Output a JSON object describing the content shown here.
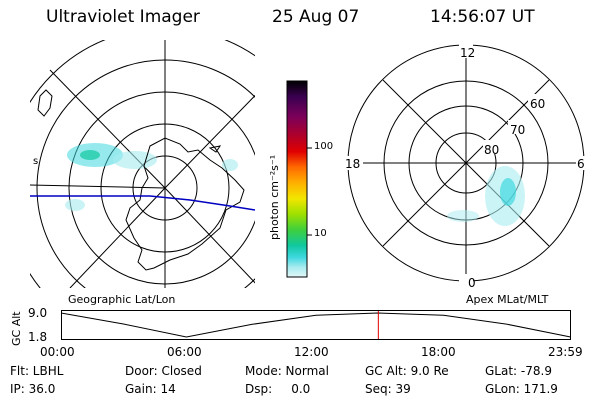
{
  "header": {
    "instrument": "Ultraviolet Imager",
    "date": "25 Aug 07",
    "time": "14:56:07 UT"
  },
  "left_panel": {
    "caption": "Geographic Lat/Lon",
    "edge_label": "s"
  },
  "colorbar": {
    "unit_label": "photon cm⁻²s⁻¹",
    "ticks": [
      "100",
      "10"
    ],
    "colors": [
      "#000000",
      "#3a0050",
      "#7a005a",
      "#b0002a",
      "#e00000",
      "#ff6a00",
      "#ffb000",
      "#f2e600",
      "#9de000",
      "#3ecf3e",
      "#10c8a0",
      "#3fd8e0",
      "#a8ecf0",
      "#e4f6f8"
    ]
  },
  "right_panel": {
    "caption": "Apex MLat/MLT",
    "mlt_labels": {
      "top": "12",
      "left": "18",
      "right": "6",
      "bottom": "0"
    },
    "lat_labels": [
      "60",
      "70",
      "80"
    ]
  },
  "altitude_plot": {
    "ylabel": "GC Alt",
    "yticks": [
      "9.0",
      "1.8"
    ],
    "xticks": [
      "00:00",
      "06:00",
      "12:00",
      "18:00",
      "23:59"
    ],
    "line_color": "#000000",
    "marker_color": "#e00000"
  },
  "chart_data": {
    "type": "line",
    "xlabel": "",
    "ylabel": "GC Alt",
    "x_range": [
      "00:00",
      "23:59"
    ],
    "ylim": [
      1.8,
      9.0
    ],
    "points": [
      {
        "t": 0.0,
        "alt": 9.0
      },
      {
        "t": 3.0,
        "alt": 5.6
      },
      {
        "t": 5.9,
        "alt": 1.8
      },
      {
        "t": 9.0,
        "alt": 5.6
      },
      {
        "t": 12.0,
        "alt": 8.3
      },
      {
        "t": 14.9,
        "alt": 9.0
      },
      {
        "t": 18.0,
        "alt": 8.3
      },
      {
        "t": 21.0,
        "alt": 5.6
      },
      {
        "t": 23.98,
        "alt": 1.8
      }
    ],
    "marker_time": "14:56"
  },
  "info": {
    "filter": "Flt: LBHL",
    "ip": "IP: 36.0",
    "door": "Door: Closed",
    "gain": "Gain: 14",
    "mode": "Mode: Normal",
    "dsp": "Dsp:     0.0",
    "gc_alt": "GC Alt: 9.0 Re",
    "seq": "Seq: 39",
    "glat": "GLat: -78.9",
    "glon": "GLon: 171.9"
  }
}
